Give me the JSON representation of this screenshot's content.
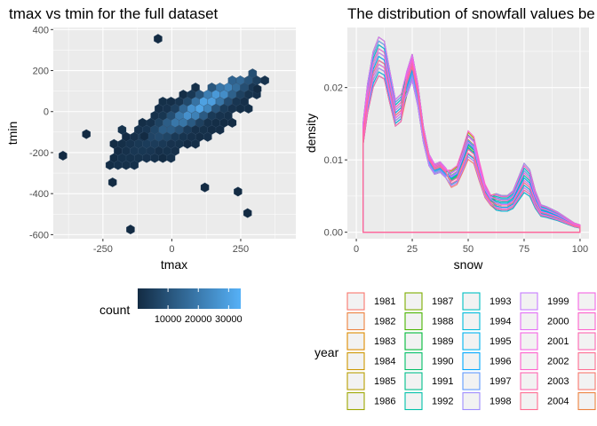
{
  "chart_data": [
    {
      "type": "hexbin",
      "title": "tmax vs tmin for the full dataset",
      "xlabel": "tmax",
      "ylabel": "tmin",
      "xlim": [
        -430,
        450
      ],
      "ylim": [
        -620,
        410
      ],
      "x_ticks": [
        -250,
        0,
        250
      ],
      "x_tick_labels": [
        "-250",
        "0",
        "250"
      ],
      "y_ticks": [
        400,
        200,
        0,
        -200,
        -400,
        -600
      ],
      "y_tick_labels": [
        "400",
        "200",
        "0",
        "-200",
        "-400",
        "-600"
      ],
      "grid": true,
      "legend": {
        "title": "count",
        "position": "bottom",
        "type": "colorbar",
        "breaks": [
          10000,
          20000,
          30000
        ],
        "break_labels": [
          "10000",
          "20000",
          "30000"
        ],
        "range": [
          1,
          34000
        ],
        "low_color": "#132B43",
        "high_color": "#56B1F7"
      }
    },
    {
      "type": "density",
      "title": "The distribution of snowfall values be",
      "xlabel": "snow",
      "ylabel": "density",
      "xlim": [
        -4,
        104
      ],
      "ylim": [
        -0.0009,
        0.0283
      ],
      "x_ticks": [
        0,
        25,
        50,
        75,
        100
      ],
      "x_tick_labels": [
        "0",
        "25",
        "50",
        "75",
        "100"
      ],
      "y_ticks": [
        0.0,
        0.01,
        0.02
      ],
      "y_tick_labels": [
        "0.00",
        "0.01",
        "0.02"
      ],
      "grid": true,
      "x": [
        3,
        5,
        7.5,
        10,
        12.5,
        15,
        17.5,
        20,
        22.5,
        25,
        27.5,
        30,
        32.5,
        35,
        37.5,
        40,
        42.5,
        45,
        47.5,
        50,
        52.5,
        55,
        57.5,
        60,
        62.5,
        65,
        67.5,
        70,
        72.5,
        75,
        77.5,
        80,
        82.5,
        85,
        87.5,
        90,
        92.5,
        95,
        97.5,
        100
      ],
      "base_density": [
        0.0135,
        0.0185,
        0.0225,
        0.0243,
        0.0238,
        0.02,
        0.0165,
        0.0172,
        0.0205,
        0.0228,
        0.019,
        0.0135,
        0.01,
        0.0087,
        0.009,
        0.0082,
        0.0075,
        0.008,
        0.01,
        0.0122,
        0.0115,
        0.0085,
        0.0058,
        0.0045,
        0.0042,
        0.004,
        0.004,
        0.0045,
        0.006,
        0.0075,
        0.0068,
        0.0045,
        0.003,
        0.0028,
        0.0025,
        0.0022,
        0.0018,
        0.0014,
        0.001,
        0.0008
      ],
      "legend": {
        "title": "year",
        "position": "bottom",
        "entries": [
          "1981",
          "1982",
          "1983",
          "1984",
          "1985",
          "1986",
          "1987",
          "1988",
          "1989",
          "1990",
          "1991",
          "1992",
          "1993",
          "1994",
          "1995",
          "1996",
          "1997",
          "1998",
          "1999",
          "2000",
          "2001",
          "2002",
          "2003",
          "2004"
        ]
      }
    }
  ]
}
